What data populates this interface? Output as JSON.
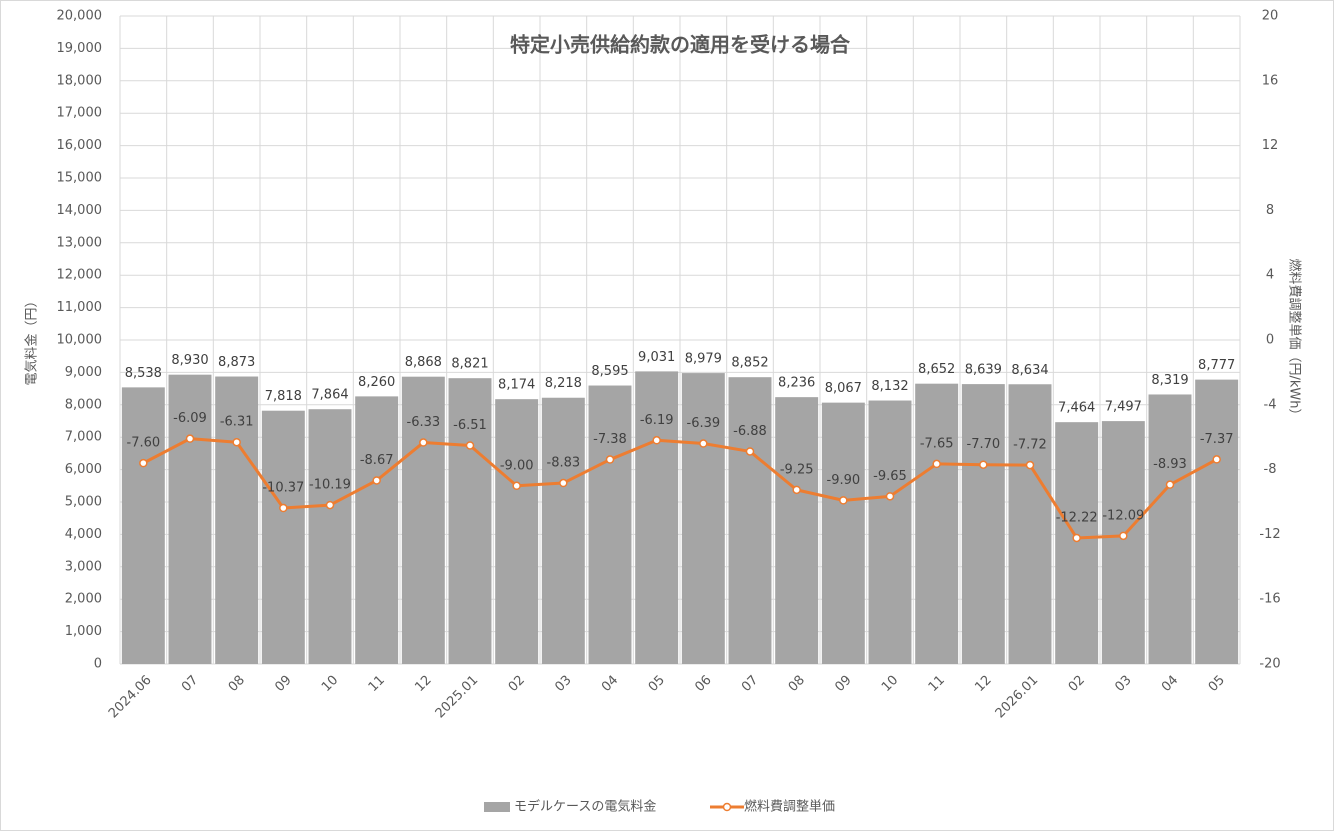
{
  "chart_data": {
    "type": "combo",
    "title": "特定小売供給約款の適用を受ける場合",
    "y_label": "電気料金（円）",
    "y2_label": "燃料費調整単価（円/kWh）",
    "categories": [
      "2024.06",
      "07",
      "08",
      "09",
      "10",
      "11",
      "12",
      "2025.01",
      "02",
      "03",
      "04",
      "05",
      "06",
      "07",
      "08",
      "09",
      "10",
      "11",
      "12",
      "2026.01",
      "02",
      "03",
      "04",
      "05"
    ],
    "series": [
      {
        "name": "モデルケースの電気料金",
        "type": "bar",
        "color": "#a5a5a5",
        "values": [
          8538,
          8930,
          8873,
          7818,
          7864,
          8260,
          8868,
          8821,
          8174,
          8218,
          8595,
          9031,
          8979,
          8852,
          8236,
          8067,
          8132,
          8652,
          8639,
          8634,
          7464,
          7497,
          8319,
          8777
        ],
        "value_labels": [
          "8,538",
          "8,930",
          "8,873",
          "7,818",
          "7,864",
          "8,260",
          "8,868",
          "8,821",
          "8,174",
          "8,218",
          "8,595",
          "9,031",
          "8,979",
          "8,852",
          "8,236",
          "8,067",
          "8,132",
          "8,652",
          "8,639",
          "8,634",
          "7,464",
          "7,497",
          "8,319",
          "8,777"
        ]
      },
      {
        "name": "燃料費調整単価",
        "type": "line",
        "axis": "y2",
        "color": "#ed7d31",
        "values": [
          -7.6,
          -6.09,
          -6.31,
          -10.37,
          -10.19,
          -8.67,
          -6.33,
          -6.51,
          -9.0,
          -8.83,
          -7.38,
          -6.19,
          -6.39,
          -6.88,
          -9.25,
          -9.9,
          -9.65,
          -7.65,
          -7.7,
          -7.72,
          -12.22,
          -12.09,
          -8.93,
          -7.37
        ],
        "value_labels": [
          "-7.60",
          "-6.09",
          "-6.31",
          "-10.37",
          "-10.19",
          "-8.67",
          "-6.33",
          "-6.51",
          "-9.00",
          "-8.83",
          "-7.38",
          "-6.19",
          "-6.39",
          "-6.88",
          "-9.25",
          "-9.90",
          "-9.65",
          "-7.65",
          "-7.70",
          "-7.72",
          "-12.22",
          "-12.09",
          "-8.93",
          "-7.37"
        ]
      }
    ],
    "ylim": [
      0,
      20000
    ],
    "yticks": [
      0,
      {
        "value": 1000,
        "label": "1,000"
      },
      {
        "value": 2000,
        "label": "2,000"
      },
      {
        "value": 3000,
        "label": "3,000"
      },
      {
        "value": 4000,
        "label": "4,000"
      },
      {
        "value": 5000,
        "label": "5,000"
      },
      {
        "value": 6000,
        "label": "6,000"
      },
      {
        "value": 7000,
        "label": "7,000"
      },
      {
        "value": 8000,
        "label": "8,000"
      },
      {
        "value": 9000,
        "label": "9,000"
      },
      {
        "value": 10000,
        "label": "10,000"
      },
      {
        "value": 11000,
        "label": "11,000"
      },
      {
        "value": 12000,
        "label": "12,000"
      },
      {
        "value": 13000,
        "label": "13,000"
      },
      {
        "value": 14000,
        "label": "14,000"
      },
      {
        "value": 15000,
        "label": "15,000"
      },
      {
        "value": 16000,
        "label": "16,000"
      },
      {
        "value": 17000,
        "label": "17,000"
      },
      {
        "value": 18000,
        "label": "18,000"
      },
      {
        "value": 19000,
        "label": "19,000"
      },
      {
        "value": 20000,
        "label": "20,000"
      }
    ],
    "y2lim": [
      -20,
      20
    ],
    "y2ticks": [
      -20,
      -16,
      -12,
      -8,
      -4,
      0,
      4,
      8,
      12,
      16,
      20
    ],
    "grid": true,
    "legend": "bottom"
  }
}
